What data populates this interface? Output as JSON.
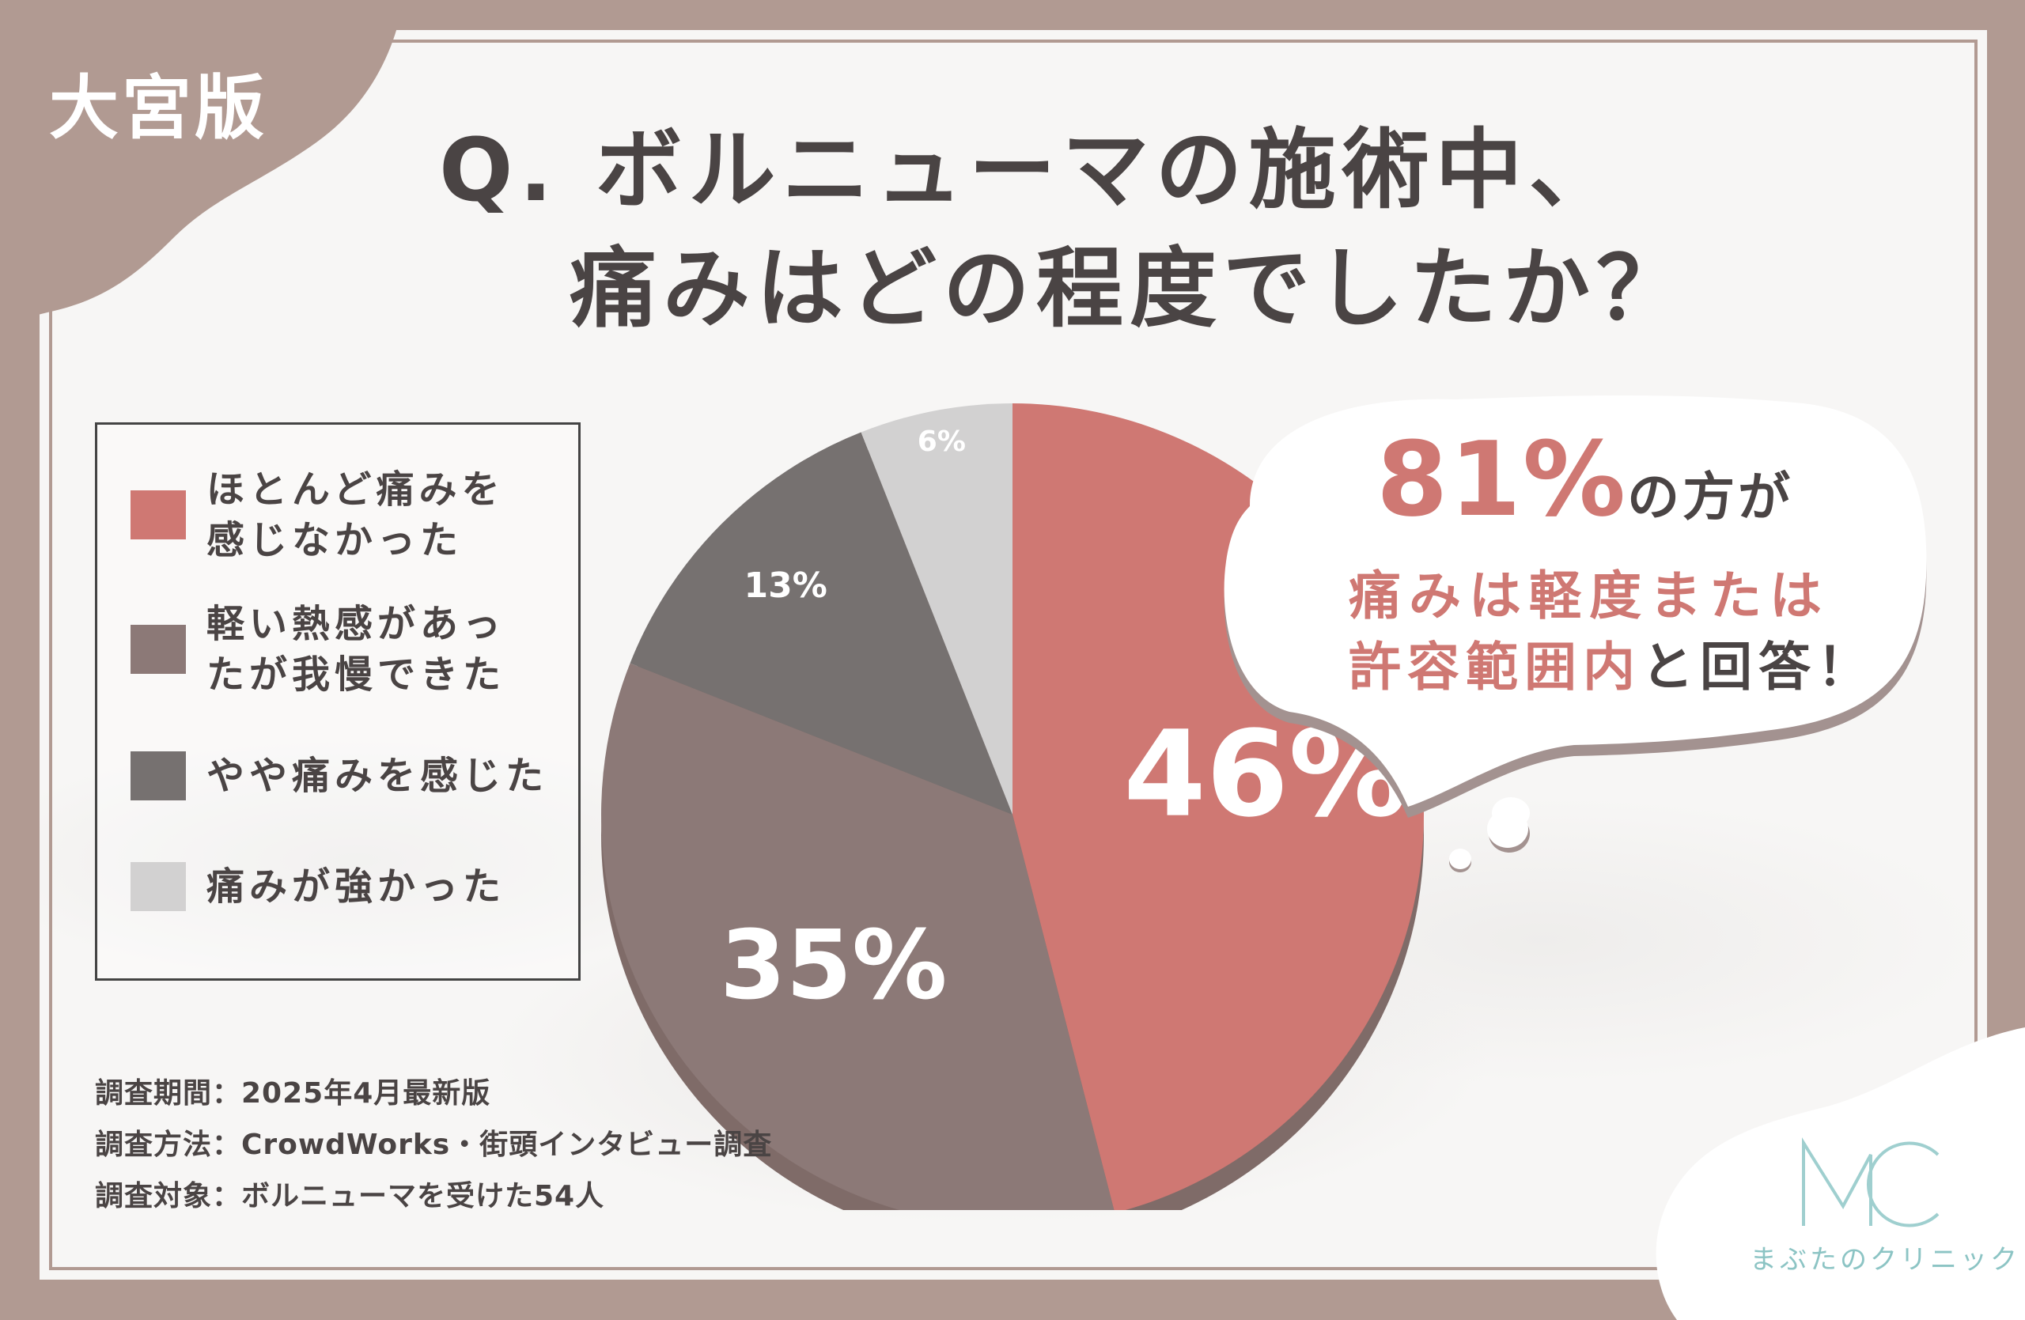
{
  "edition_label": "大宮版",
  "title": {
    "line1": "Q. ボルニューマの施術中、",
    "line2": "痛みはどの程度でしたか？"
  },
  "colors": {
    "background": "#b19a92",
    "accent_red": "#cf7873",
    "mauve": "#8c7977",
    "dark_gray": "#767170",
    "light_gray": "#d2d1d1",
    "text": "#4a4444",
    "logo": "#8cc4c4"
  },
  "chart_data": {
    "type": "pie",
    "categories": [
      "ほとんど痛みを\n感じなかった",
      "軽い熱感があっ\nたが我慢できた",
      "やや痛みを感じた",
      "痛みが強かった"
    ],
    "values": [
      46,
      35,
      13,
      6
    ],
    "labels": [
      "46%",
      "35%",
      "13%",
      "6%"
    ],
    "colors": [
      "#cf7873",
      "#8c7977",
      "#767170",
      "#d2d1d1"
    ]
  },
  "callout": {
    "big_number": "81%",
    "line1_suffix": "の方が",
    "line2": "痛みは軽度または",
    "line3_highlight": "許容範囲内",
    "line3_rest": "と回答！"
  },
  "footnotes": [
    "調査期間：2025年4月最新版",
    "調査方法：CrowdWorks・街頭インタビュー調査",
    "調査対象：ボルニューマを受けた54人"
  ],
  "logo": {
    "mark": "MC",
    "name": "まぶたのクリニック"
  }
}
